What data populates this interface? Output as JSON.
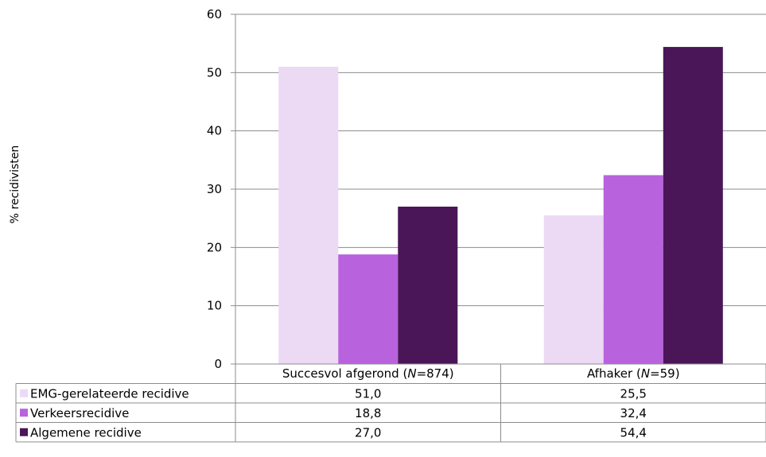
{
  "chart_data": {
    "type": "bar",
    "ylabel": "% recidivisten",
    "ylim": [
      0,
      60
    ],
    "yticks": [
      0,
      10,
      20,
      30,
      40,
      50,
      60
    ],
    "grid": true,
    "legend_placement": "data table below chart",
    "categories": [
      {
        "text": "Succesvol afgerond (",
        "n_label": "N",
        "suffix": "=874)"
      },
      {
        "text": "Afhaker (",
        "n_label": "N",
        "suffix": "=59)"
      }
    ],
    "series": [
      {
        "name": "EMG-gerelateerde recidive",
        "color": "#ecdaf5",
        "values": [
          51.0,
          25.5
        ],
        "labels": [
          "51,0",
          "25,5"
        ]
      },
      {
        "name": "Verkeersrecidive",
        "color": "#b862de",
        "values": [
          18.8,
          32.4
        ],
        "labels": [
          "18,8",
          "32,4"
        ]
      },
      {
        "name": "Algemene recidive",
        "color": "#4a1658",
        "values": [
          27.0,
          54.4
        ],
        "labels": [
          "27,0",
          "54,4"
        ]
      }
    ]
  }
}
